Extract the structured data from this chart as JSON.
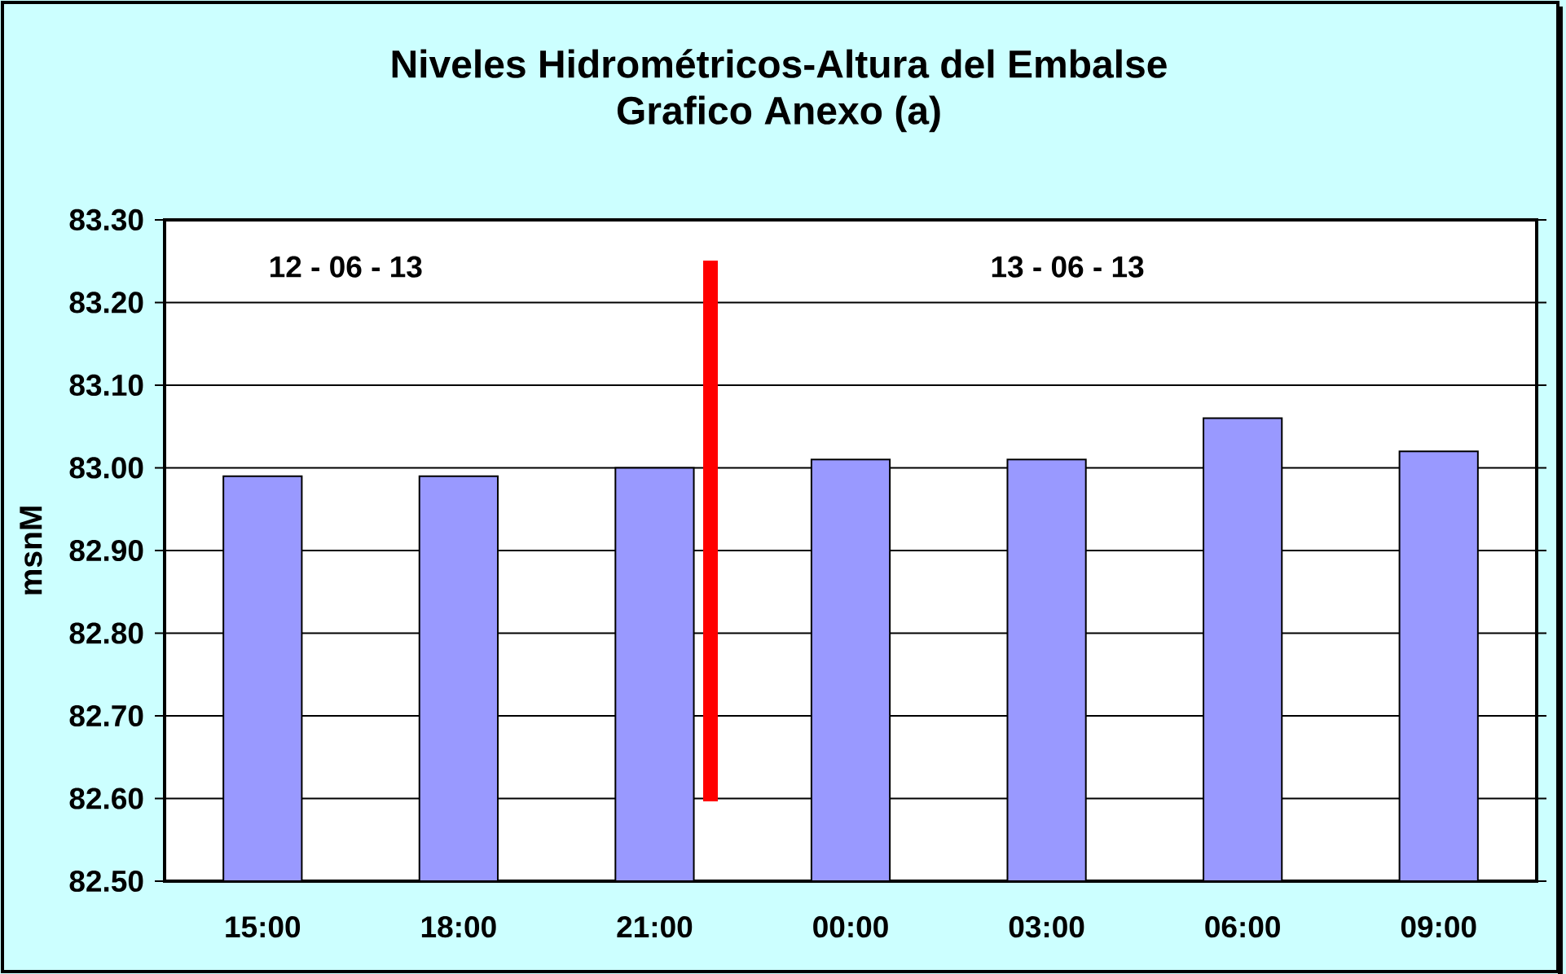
{
  "chart_data": {
    "type": "bar",
    "title": "Niveles Hidrométricos-Altura del Embalse",
    "subtitle": "Grafico Anexo (a)",
    "ylabel": "msnM",
    "categories": [
      "15:00",
      "18:00",
      "21:00",
      "00:00",
      "03:00",
      "06:00",
      "09:00"
    ],
    "values": [
      82.99,
      82.99,
      83.0,
      83.01,
      83.01,
      83.06,
      83.02
    ],
    "color": "#9999ff",
    "ylim": [
      82.5,
      83.3
    ],
    "yticks": [
      {
        "value": 82.5,
        "label": "82.50"
      },
      {
        "value": 82.6,
        "label": "82.60"
      },
      {
        "value": 82.7,
        "label": "82.70"
      },
      {
        "value": 82.8,
        "label": "82.80"
      },
      {
        "value": 82.9,
        "label": "82.90"
      },
      {
        "value": 83.0,
        "label": "83.00"
      },
      {
        "value": 83.1,
        "label": "83.10"
      },
      {
        "value": 83.2,
        "label": "83.20"
      },
      {
        "value": 83.3,
        "label": "83.30"
      }
    ],
    "grid": "y",
    "annotations": [
      "12 - 06 - 13",
      "13 - 06 - 13"
    ]
  }
}
